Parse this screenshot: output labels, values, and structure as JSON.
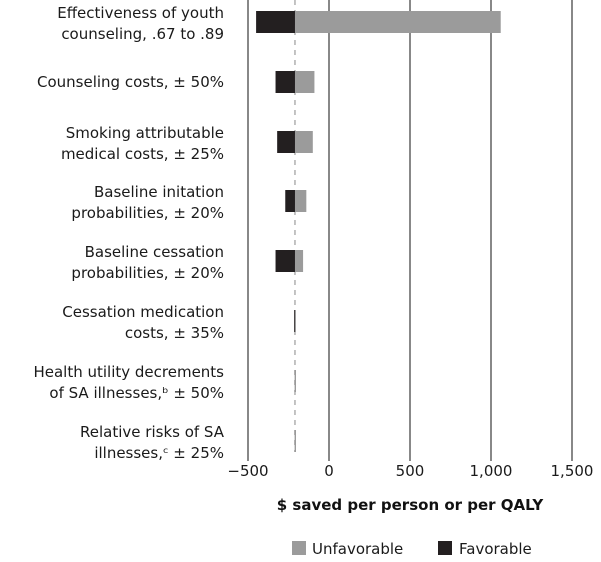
{
  "colors": {
    "unfavorable": "#9b9b9b",
    "favorable": "#231f20",
    "axis": "#111111",
    "baseline": "#888888"
  },
  "chart_data": {
    "type": "bar",
    "orientation": "horizontal",
    "subtype": "tornado",
    "base_value": -210,
    "xlabel": "$ saved per person or per QALY",
    "xlim": [
      -500,
      1500
    ],
    "xticks": [
      "−500",
      "0",
      "500",
      "1,000",
      "1,500"
    ],
    "xtick_values": [
      -500,
      0,
      500,
      1000,
      1500
    ],
    "grid": "vertical",
    "legend_position": "bottom",
    "categories": [
      {
        "lines": [
          "Effectiveness of youth",
          "counseling, .67 to .89"
        ],
        "favorable": -450,
        "unfavorable": 1060
      },
      {
        "lines": [
          "Counseling costs, ± 50%"
        ],
        "favorable": -330,
        "unfavorable": -90
      },
      {
        "lines": [
          "Smoking attributable",
          "medical costs, ± 25%"
        ],
        "favorable": -320,
        "unfavorable": -100
      },
      {
        "lines": [
          "Baseline initation",
          "probabilities, ± 20%"
        ],
        "favorable": -270,
        "unfavorable": -140
      },
      {
        "lines": [
          "Baseline cessation",
          "probabilities, ± 20%"
        ],
        "favorable": -330,
        "unfavorable": -160
      },
      {
        "lines": [
          "Cessation medication",
          "costs, ± 35%"
        ],
        "favorable": -215,
        "unfavorable": -205
      },
      {
        "lines": [
          "Health utility decrements",
          "of SA illnesses,ᵇ ± 50%"
        ],
        "favorable": -211,
        "unfavorable": -209
      },
      {
        "lines": [
          "Relative risks of SA",
          "illnesses,ᶜ ± 25%"
        ],
        "favorable": -211,
        "unfavorable": -209
      }
    ],
    "series": [
      {
        "name": "Unfavorable"
      },
      {
        "name": "Favorable"
      }
    ]
  }
}
